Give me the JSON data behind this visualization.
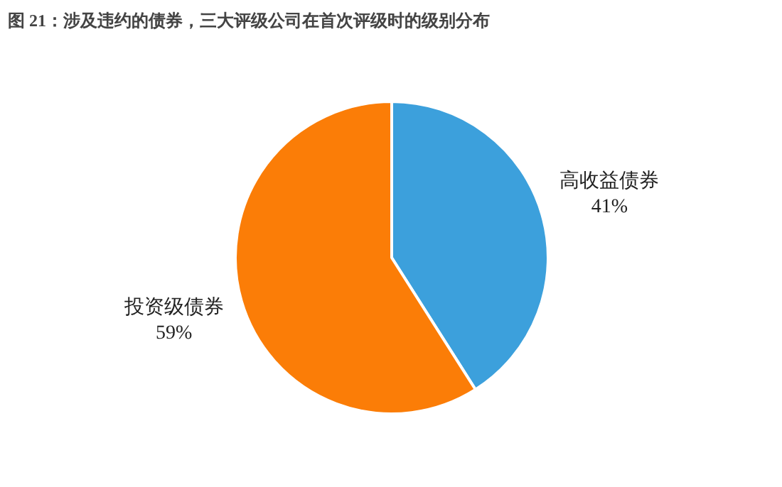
{
  "chart_data": {
    "type": "pie",
    "title": "图 21：涉及违约的债券，三大评级公司在首次评级时的级别分布",
    "categories": [
      "高收益债券",
      "投资级债券"
    ],
    "values": [
      41,
      59
    ],
    "value_labels": [
      "41%",
      "59%"
    ],
    "colors": [
      "#3ca0dc",
      "#fb7d07"
    ]
  }
}
